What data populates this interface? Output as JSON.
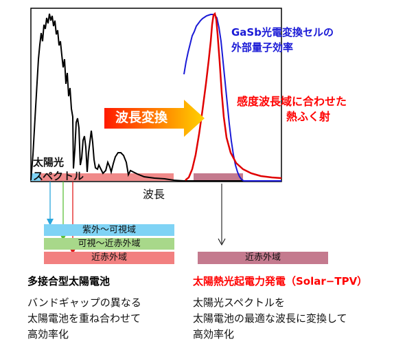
{
  "labels": {
    "gasb_eqe": [
      "GaSb光電変換セルの",
      "外部量子効率"
    ],
    "thermal": [
      "感度波長域に合わせた",
      "熱ふく射"
    ],
    "conversion_arrow": "波長変換",
    "sun_spectrum": [
      "太陽光",
      "スペクトル"
    ],
    "x_axis": "波長"
  },
  "bands": {
    "uv_vis": "紫外～可視域",
    "vis_nir": "可視～近赤外域",
    "nir": "近赤外域",
    "tpv_nir": "近赤外域"
  },
  "left_column": {
    "title": "多接合型太陽電池",
    "desc": [
      "バンドギャップの異なる",
      "太陽電池を重ね合わせて",
      "高効率化"
    ]
  },
  "right_column": {
    "title": "太陽熱光起電力発電（Solar−TPV）",
    "desc": [
      "太陽光スペクトルを",
      "太陽電池の最適な波長に変換して",
      "高効率化"
    ]
  },
  "colors": {
    "title_red": "#ff0000",
    "eqe_blue": "#1a1ad6",
    "uv_vis_band": "#7fd3f5",
    "vis_nir_band": "#a8d88a",
    "nir_band": "#f28080",
    "tpv_band": "#c47a8e",
    "arrow_blue": "#2aa6dc",
    "arrow_green": "#5cbf3a",
    "arrow_red": "#e21b1b"
  }
}
